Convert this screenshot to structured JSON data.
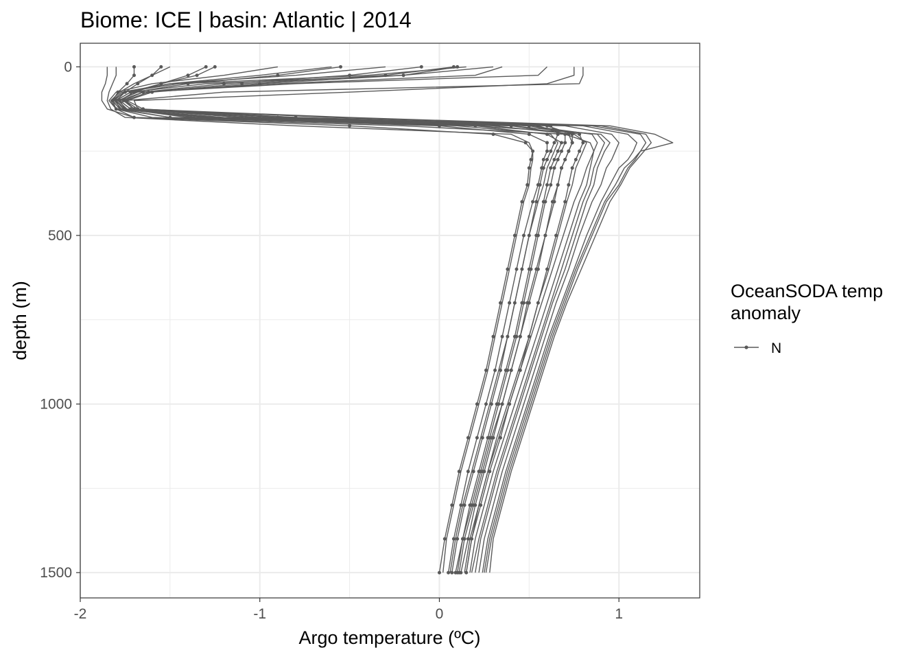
{
  "chart_data": {
    "type": "line",
    "title": "Biome: ICE | basin: Atlantic  |  2014",
    "xlabel": "Argo temperature (ºC)",
    "ylabel": "depth (m)",
    "xlim": [
      -2,
      1.45
    ],
    "ylim": [
      1575,
      -70
    ],
    "y_reversed": true,
    "x_ticks": [
      -2,
      -1,
      0,
      1
    ],
    "x_tick_labels": [
      "-2",
      "-1",
      "0",
      "1"
    ],
    "y_ticks": [
      0,
      500,
      1000,
      1500
    ],
    "y_tick_labels": [
      "0",
      "500",
      "1000",
      "1500"
    ],
    "grid": true,
    "line_color": "#595959",
    "legend": {
      "title_lines": [
        "OceanSODA temp",
        "anomaly"
      ],
      "entries": [
        {
          "label": "N",
          "color": "#595959"
        }
      ],
      "position": "right"
    },
    "profile_depths": [
      0,
      25,
      50,
      75,
      100,
      125,
      150,
      175,
      200,
      225,
      250,
      275,
      300,
      350,
      400,
      500,
      600,
      700,
      800,
      900,
      1000,
      1100,
      1200,
      1300,
      1400,
      1500
    ],
    "series": [
      {
        "values": [
          -1.7,
          -1.7,
          -1.74,
          -1.79,
          -1.82,
          -1.8,
          -1.7,
          -0.5,
          0.3,
          0.48,
          0.52,
          0.51,
          0.5,
          0.49,
          0.46,
          0.42,
          0.38,
          0.34,
          0.3,
          0.26,
          0.21,
          0.16,
          0.11,
          0.07,
          0.03,
          0.0
        ],
        "points": true
      },
      {
        "values": [
          -1.55,
          -1.6,
          -1.68,
          -1.75,
          -1.8,
          -1.78,
          -1.5,
          0.0,
          0.5,
          0.6,
          0.6,
          0.58,
          0.57,
          0.55,
          0.52,
          0.47,
          0.43,
          0.39,
          0.35,
          0.31,
          0.26,
          0.21,
          0.16,
          0.12,
          0.08,
          0.05
        ],
        "points": true
      },
      {
        "values": [
          -1.3,
          -1.4,
          -1.55,
          -1.7,
          -1.78,
          -1.75,
          -1.4,
          0.2,
          0.6,
          0.68,
          0.66,
          0.64,
          0.62,
          0.6,
          0.58,
          0.54,
          0.5,
          0.46,
          0.42,
          0.37,
          0.32,
          0.27,
          0.22,
          0.17,
          0.13,
          0.1
        ],
        "points": true
      },
      {
        "values": [
          -1.25,
          -1.35,
          -1.55,
          -1.72,
          -1.8,
          -1.76,
          -1.3,
          0.4,
          0.72,
          0.74,
          0.72,
          0.7,
          0.68,
          0.66,
          0.64,
          0.59,
          0.54,
          0.49,
          0.45,
          0.4,
          0.35,
          0.3,
          0.25,
          0.2,
          0.16,
          0.12
        ],
        "points": true
      },
      {
        "values": [
          -0.55,
          -0.9,
          -1.4,
          -1.7,
          -1.78,
          -1.72,
          -1.1,
          0.5,
          0.78,
          0.8,
          0.78,
          0.76,
          0.74,
          0.72,
          0.7,
          0.65,
          0.6,
          0.55,
          0.5,
          0.45,
          0.39,
          0.34,
          0.28,
          0.23,
          0.18,
          0.15
        ],
        "points": true
      },
      {
        "values": [
          -0.1,
          -0.5,
          -1.2,
          -1.65,
          -1.76,
          -1.7,
          -1.0,
          0.55,
          0.7,
          0.7,
          0.68,
          0.66,
          0.64,
          0.62,
          0.59,
          0.55,
          0.51,
          0.47,
          0.43,
          0.38,
          0.33,
          0.28,
          0.23,
          0.18,
          0.13,
          0.09
        ],
        "points": true
      },
      {
        "values": [
          0.08,
          -0.3,
          -1.1,
          -1.62,
          -1.75,
          -1.68,
          -0.9,
          0.6,
          0.74,
          0.74,
          0.72,
          0.7,
          0.68,
          0.66,
          0.63,
          0.59,
          0.55,
          0.5,
          0.45,
          0.4,
          0.35,
          0.29,
          0.24,
          0.19,
          0.14,
          0.11
        ],
        "points": true
      },
      {
        "values": [
          0.1,
          -0.2,
          -1.0,
          -1.6,
          -1.74,
          -1.65,
          -0.8,
          0.62,
          0.66,
          0.64,
          0.62,
          0.6,
          0.58,
          0.56,
          0.54,
          0.5,
          0.46,
          0.42,
          0.38,
          0.34,
          0.29,
          0.24,
          0.19,
          0.14,
          0.1,
          0.07
        ],
        "points": true
      },
      {
        "values": [
          -1.85,
          -1.85,
          -1.86,
          -1.88,
          -1.88,
          -1.85,
          -1.7,
          -0.2,
          0.7,
          0.84,
          0.86,
          0.85,
          0.84,
          0.82,
          0.78,
          0.72,
          0.66,
          0.6,
          0.54,
          0.48,
          0.42,
          0.36,
          0.3,
          0.25,
          0.2,
          0.17
        ],
        "points": false
      },
      {
        "values": [
          -1.5,
          -1.6,
          -1.7,
          -1.78,
          -1.83,
          -1.8,
          -1.5,
          0.4,
          0.88,
          0.92,
          0.9,
          0.88,
          0.86,
          0.84,
          0.8,
          0.74,
          0.68,
          0.62,
          0.56,
          0.5,
          0.44,
          0.38,
          0.32,
          0.27,
          0.22,
          0.18
        ],
        "points": false
      },
      {
        "values": [
          -0.6,
          -1.0,
          -1.5,
          -1.75,
          -1.82,
          -1.78,
          -1.2,
          0.7,
          0.96,
          1.0,
          0.98,
          0.96,
          0.93,
          0.9,
          0.85,
          0.78,
          0.72,
          0.65,
          0.59,
          0.53,
          0.47,
          0.41,
          0.35,
          0.3,
          0.25,
          0.22
        ],
        "points": false
      },
      {
        "values": [
          0.3,
          -0.2,
          -1.3,
          -1.72,
          -1.8,
          -1.75,
          -1.0,
          0.8,
          1.05,
          1.1,
          1.08,
          1.05,
          1.0,
          0.95,
          0.9,
          0.82,
          0.75,
          0.68,
          0.61,
          0.55,
          0.49,
          0.43,
          0.37,
          0.32,
          0.27,
          0.24
        ],
        "points": false
      },
      {
        "values": [
          0.6,
          0.55,
          -0.8,
          -1.65,
          -1.78,
          -1.72,
          -0.8,
          0.85,
          1.12,
          1.15,
          1.12,
          1.09,
          1.05,
          1.0,
          0.93,
          0.85,
          0.77,
          0.7,
          0.63,
          0.57,
          0.51,
          0.45,
          0.39,
          0.34,
          0.29,
          0.26
        ],
        "points": false
      },
      {
        "values": [
          0.8,
          0.8,
          0.78,
          -1.2,
          -1.75,
          -1.7,
          -0.6,
          0.9,
          1.15,
          1.18,
          1.14,
          1.1,
          1.06,
          1.01,
          0.95,
          0.87,
          0.79,
          0.71,
          0.64,
          0.58,
          0.52,
          0.46,
          0.4,
          0.35,
          0.3,
          0.28
        ],
        "points": false
      },
      {
        "values": [
          0.75,
          0.75,
          0.6,
          -0.5,
          -1.7,
          -1.68,
          -0.5,
          0.95,
          1.2,
          1.3,
          1.12,
          1.08,
          1.03,
          0.98,
          0.92,
          0.84,
          0.76,
          0.69,
          0.62,
          0.56,
          0.5,
          0.44,
          0.38,
          0.33,
          0.28,
          0.25
        ],
        "points": false
      },
      {
        "values": [
          0.35,
          0.2,
          -0.9,
          -1.68,
          -1.79,
          -1.74,
          -1.1,
          0.5,
          0.85,
          0.88,
          0.86,
          0.84,
          0.82,
          0.79,
          0.75,
          0.69,
          0.63,
          0.57,
          0.51,
          0.45,
          0.39,
          0.33,
          0.27,
          0.22,
          0.18,
          0.15
        ],
        "points": false
      },
      {
        "values": [
          -0.9,
          -1.2,
          -1.6,
          -1.8,
          -1.84,
          -1.8,
          -1.6,
          0.1,
          0.62,
          0.66,
          0.64,
          0.62,
          0.6,
          0.58,
          0.55,
          0.5,
          0.46,
          0.42,
          0.38,
          0.33,
          0.28,
          0.23,
          0.18,
          0.13,
          0.09,
          0.06
        ],
        "points": false
      },
      {
        "values": [
          -1.8,
          -1.8,
          -1.82,
          -1.84,
          -1.85,
          -1.83,
          -1.75,
          -0.8,
          0.4,
          0.5,
          0.52,
          0.52,
          0.51,
          0.5,
          0.47,
          0.43,
          0.39,
          0.35,
          0.31,
          0.27,
          0.22,
          0.17,
          0.12,
          0.08,
          0.04,
          0.02
        ],
        "points": false
      },
      {
        "values": [
          0.15,
          -0.4,
          -1.45,
          -1.76,
          -1.81,
          -1.77,
          -1.25,
          0.3,
          0.75,
          0.82,
          0.8,
          0.78,
          0.76,
          0.74,
          0.71,
          0.66,
          0.61,
          0.55,
          0.5,
          0.44,
          0.38,
          0.32,
          0.27,
          0.22,
          0.17,
          0.14
        ],
        "points": false
      },
      {
        "values": [
          -0.3,
          -0.8,
          -1.5,
          -1.77,
          -1.82,
          -1.78,
          -1.35,
          0.2,
          0.9,
          0.95,
          0.92,
          0.9,
          0.88,
          0.86,
          0.82,
          0.76,
          0.7,
          0.63,
          0.57,
          0.51,
          0.45,
          0.39,
          0.33,
          0.28,
          0.23,
          0.2
        ],
        "points": false
      }
    ]
  }
}
